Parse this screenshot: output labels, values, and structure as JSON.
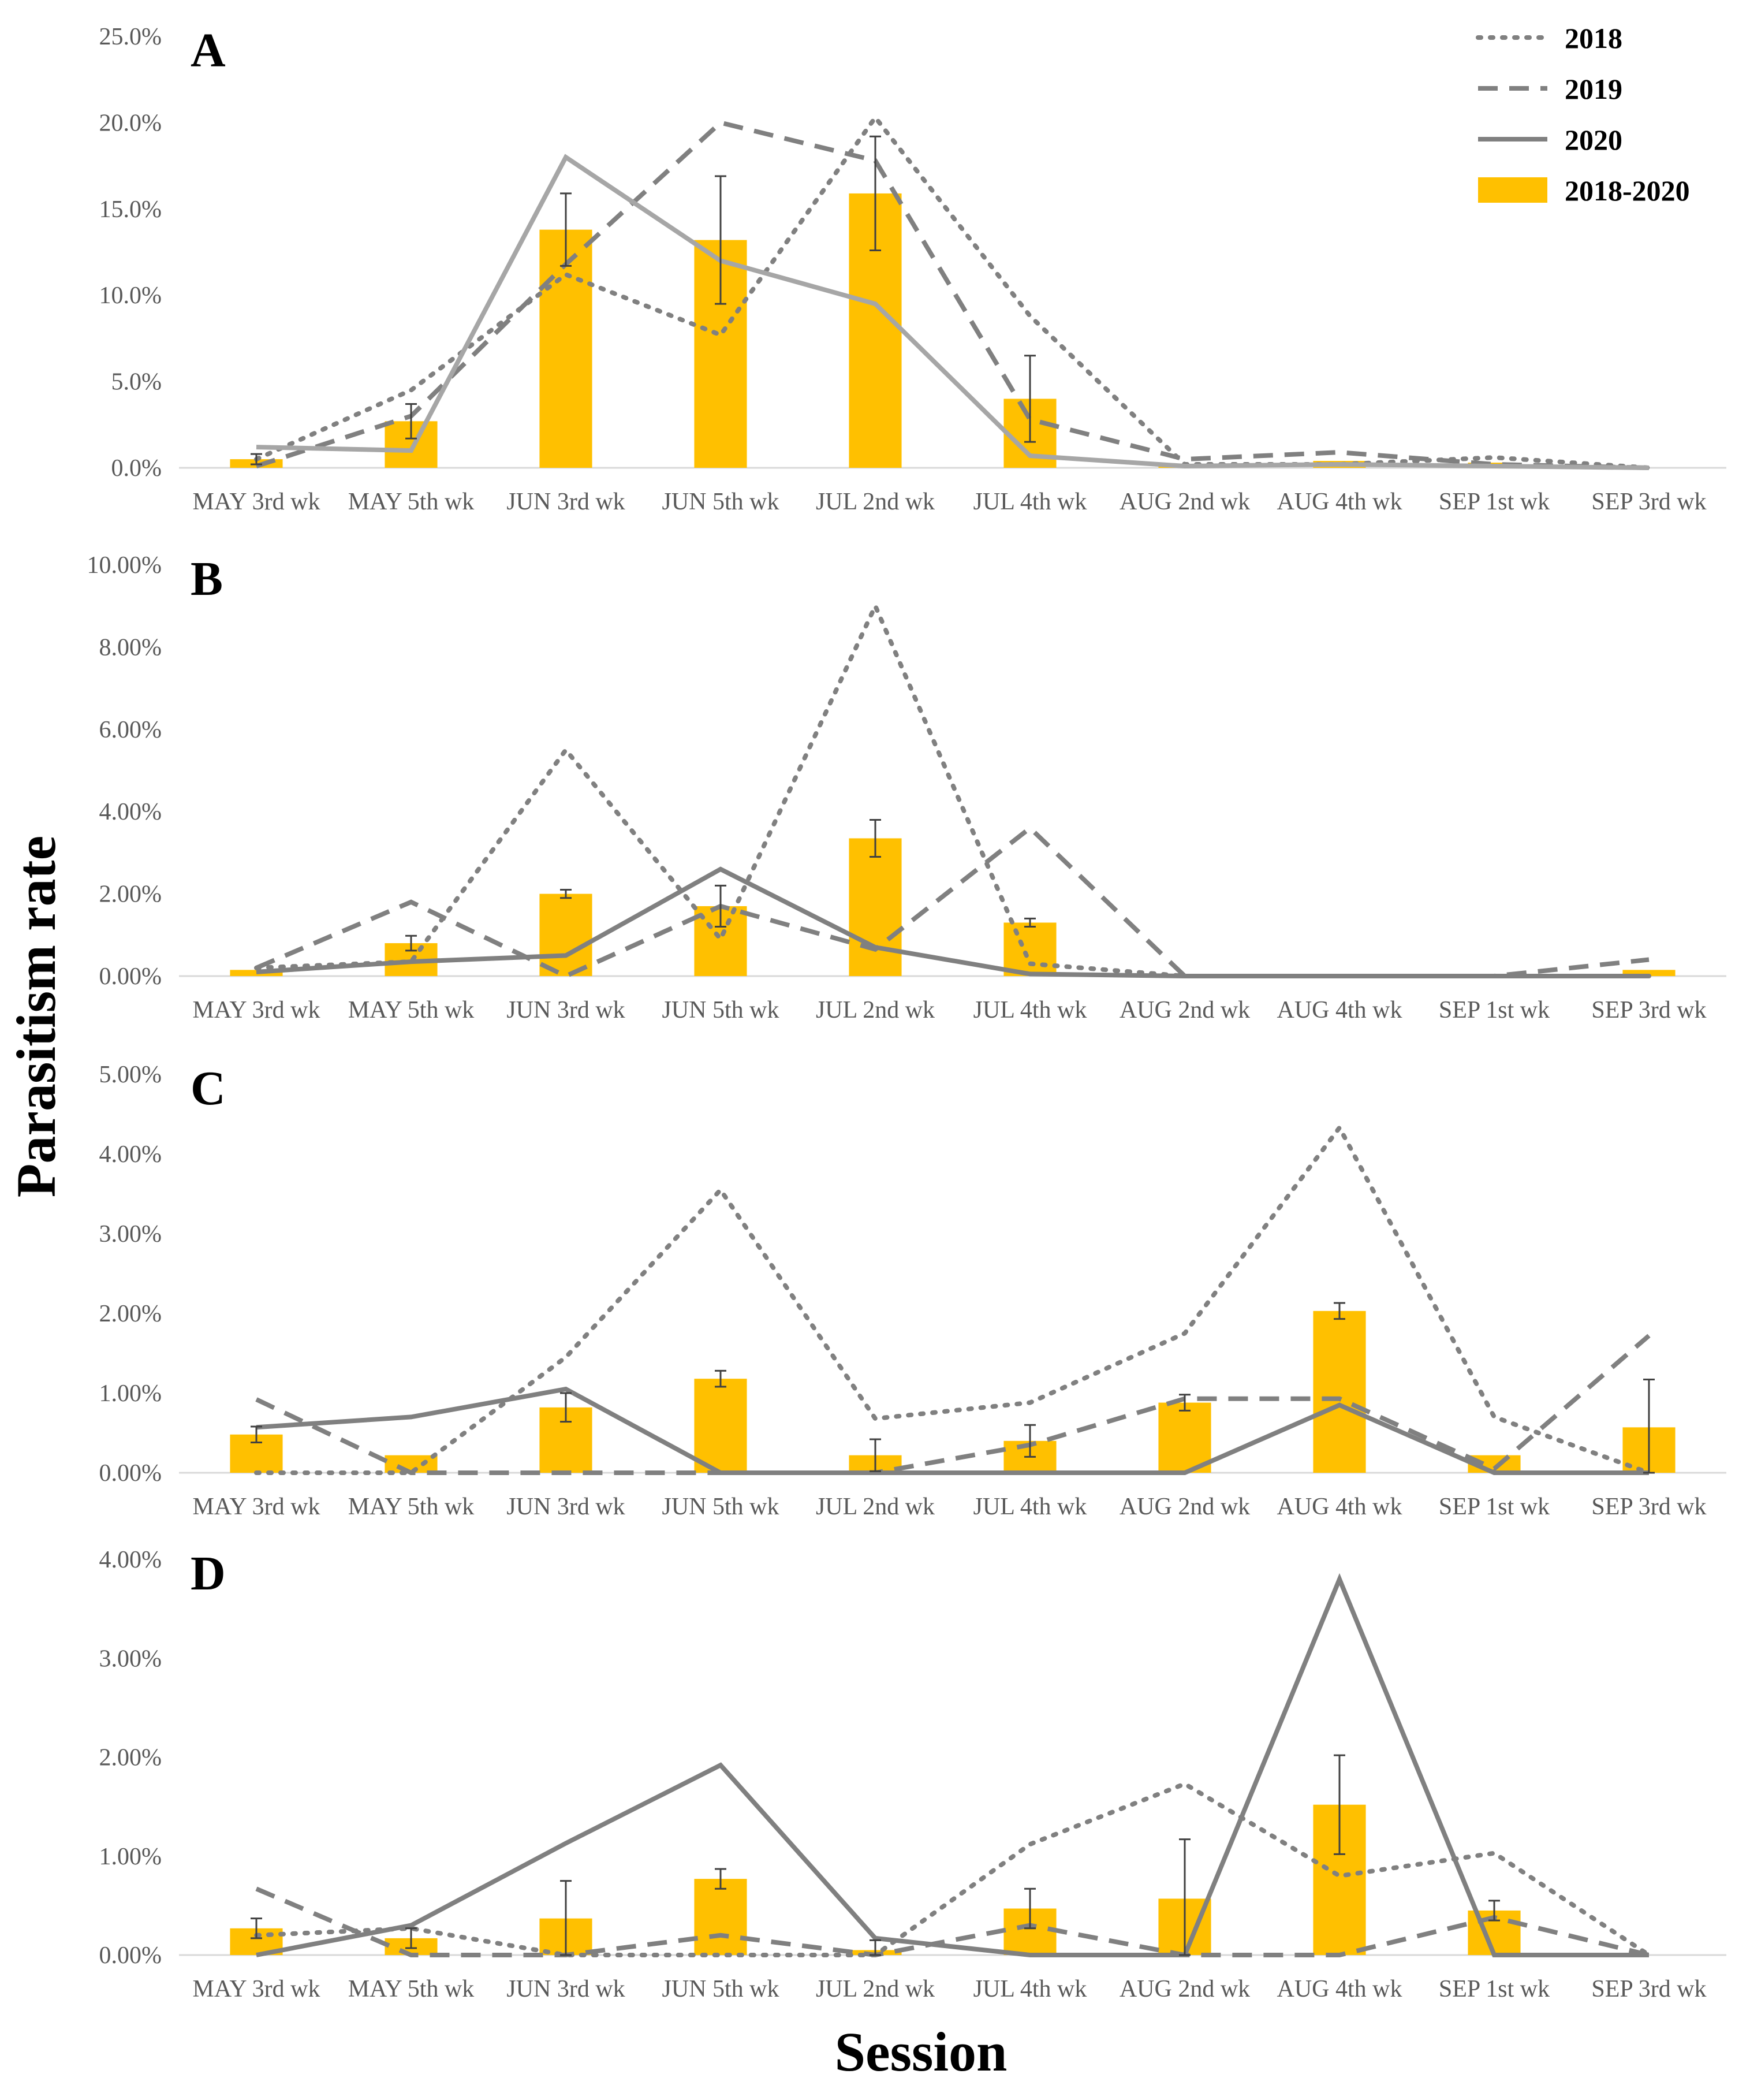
{
  "ylabel": "Parasitism rate",
  "xlabel": "Session",
  "legend": {
    "position": "top-right",
    "entries": [
      {
        "name": "2018",
        "style": "dotted"
      },
      {
        "name": "2019",
        "style": "dashed"
      },
      {
        "name": "2020",
        "style": "solid"
      },
      {
        "name": "2018-2020",
        "style": "bar"
      }
    ]
  },
  "colors": {
    "bar": "#FFC000",
    "line": "#808080",
    "line_light": "#A6A6A6",
    "grid": "#D9D9D9",
    "error": "#404040"
  },
  "chart_data": [
    {
      "type": "bar",
      "panel": "A",
      "categories": [
        "MAY 3rd wk",
        "MAY 5th wk",
        "JUN 3rd wk",
        "JUN 5th wk",
        "JUL 2nd wk",
        "JUL 4th wk",
        "AUG 2nd wk",
        "AUG 4th wk",
        "SEP 1st wk",
        "SEP 3rd wk"
      ],
      "ylim": [
        0,
        25
      ],
      "yticks": [
        "0.0%",
        "5.0%",
        "10.0%",
        "15.0%",
        "20.0%",
        "25.0%"
      ],
      "bar_series": {
        "name": "2018-2020",
        "values": [
          0.5,
          2.7,
          13.8,
          13.2,
          15.9,
          4.0,
          0.1,
          0.4,
          0.3,
          0.0
        ],
        "errors": [
          0.3,
          1.0,
          2.1,
          3.7,
          3.3,
          2.5,
          0,
          0,
          0,
          0
        ]
      },
      "series": [
        {
          "name": "2018",
          "values": [
            0.5,
            4.5,
            11.2,
            7.7,
            20.3,
            8.8,
            0.2,
            0.2,
            0.6,
            0.0
          ]
        },
        {
          "name": "2019",
          "values": [
            0.1,
            3.0,
            11.8,
            20.0,
            17.8,
            2.8,
            0.5,
            0.9,
            0.2,
            0.0
          ]
        },
        {
          "name": "2020",
          "values": [
            1.2,
            1.0,
            18.0,
            12.0,
            9.5,
            0.7,
            0.1,
            0.2,
            0.1,
            0.0
          ]
        }
      ]
    },
    {
      "type": "bar",
      "panel": "B",
      "categories": [
        "MAY 3rd wk",
        "MAY 5th wk",
        "JUN 3rd wk",
        "JUN 5th wk",
        "JUL 2nd wk",
        "JUL 4th wk",
        "AUG 2nd wk",
        "AUG 4th wk",
        "SEP 1st wk",
        "SEP 3rd wk"
      ],
      "ylim": [
        0,
        10
      ],
      "yticks": [
        "0.00%",
        "2.00%",
        "4.00%",
        "6.00%",
        "8.00%",
        "10.00%"
      ],
      "bar_series": {
        "name": "2018-2020",
        "values": [
          0.15,
          0.8,
          2.0,
          1.7,
          3.35,
          1.3,
          0,
          0,
          0,
          0.15
        ],
        "errors": [
          0,
          0.18,
          0.1,
          0.5,
          0.45,
          0.1,
          0,
          0,
          0,
          0
        ]
      },
      "series": [
        {
          "name": "2018",
          "values": [
            0.2,
            0.35,
            5.5,
            0.9,
            9.0,
            0.3,
            0.0,
            0.0,
            0.0,
            0.0
          ]
        },
        {
          "name": "2019",
          "values": [
            0.2,
            1.8,
            0.0,
            1.7,
            0.65,
            3.6,
            0.0,
            0.0,
            0.0,
            0.4
          ]
        },
        {
          "name": "2020",
          "values": [
            0.1,
            0.35,
            0.5,
            2.6,
            0.7,
            0.05,
            0.0,
            0.0,
            0.0,
            0.0
          ]
        }
      ]
    },
    {
      "type": "bar",
      "panel": "C",
      "categories": [
        "MAY 3rd wk",
        "MAY 5th wk",
        "JUN 3rd wk",
        "JUN 5th wk",
        "JUL 2nd wk",
        "JUL 4th wk",
        "AUG 2nd wk",
        "AUG 4th wk",
        "SEP 1st wk",
        "SEP 3rd wk"
      ],
      "ylim": [
        0,
        5
      ],
      "yticks": [
        "0.00%",
        "1.00%",
        "2.00%",
        "3.00%",
        "4.00%",
        "5.00%"
      ],
      "bar_series": {
        "name": "2018-2020",
        "values": [
          0.48,
          0.22,
          0.82,
          1.18,
          0.22,
          0.4,
          0.88,
          2.03,
          0.22,
          0.57
        ],
        "errors": [
          0.1,
          0,
          0.18,
          0.1,
          0.2,
          0.2,
          0.1,
          0.1,
          0,
          0.6
        ]
      },
      "series": [
        {
          "name": "2018",
          "values": [
            0.0,
            0.0,
            1.45,
            3.55,
            0.68,
            0.88,
            1.75,
            4.33,
            0.7,
            0.0
          ]
        },
        {
          "name": "2019",
          "values": [
            0.92,
            0.0,
            0.0,
            0.0,
            0.0,
            0.35,
            0.93,
            0.93,
            0.05,
            1.72
          ]
        },
        {
          "name": "2020",
          "values": [
            0.57,
            0.7,
            1.05,
            0.0,
            0.0,
            0.0,
            0.0,
            0.85,
            0.0,
            0.0
          ]
        }
      ]
    },
    {
      "type": "bar",
      "panel": "D",
      "categories": [
        "MAY 3rd wk",
        "MAY 5th wk",
        "JUN 3rd wk",
        "JUN 5th wk",
        "JUL 2nd wk",
        "JUL 4th wk",
        "AUG 2nd wk",
        "AUG 4th wk",
        "SEP 1st wk",
        "SEP 3rd wk"
      ],
      "ylim": [
        0,
        4
      ],
      "yticks": [
        "0.00%",
        "1.00%",
        "2.00%",
        "3.00%",
        "4.00%"
      ],
      "bar_series": {
        "name": "2018-2020",
        "values": [
          0.27,
          0.17,
          0.37,
          0.77,
          0.05,
          0.47,
          0.57,
          1.52,
          0.45,
          0.0
        ],
        "errors": [
          0.1,
          0.1,
          0.38,
          0.1,
          0.1,
          0.2,
          0.6,
          0.5,
          0.1,
          0
        ]
      },
      "series": [
        {
          "name": "2018",
          "values": [
            0.2,
            0.27,
            0.0,
            0.0,
            0.0,
            1.12,
            1.73,
            0.8,
            1.03,
            0.0
          ]
        },
        {
          "name": "2019",
          "values": [
            0.67,
            0.0,
            0.0,
            0.2,
            0.0,
            0.3,
            0.0,
            0.0,
            0.38,
            0.0
          ]
        },
        {
          "name": "2020",
          "values": [
            0.0,
            0.3,
            1.13,
            1.92,
            0.17,
            0.0,
            0.0,
            3.8,
            0.0,
            0.0
          ]
        }
      ]
    }
  ]
}
